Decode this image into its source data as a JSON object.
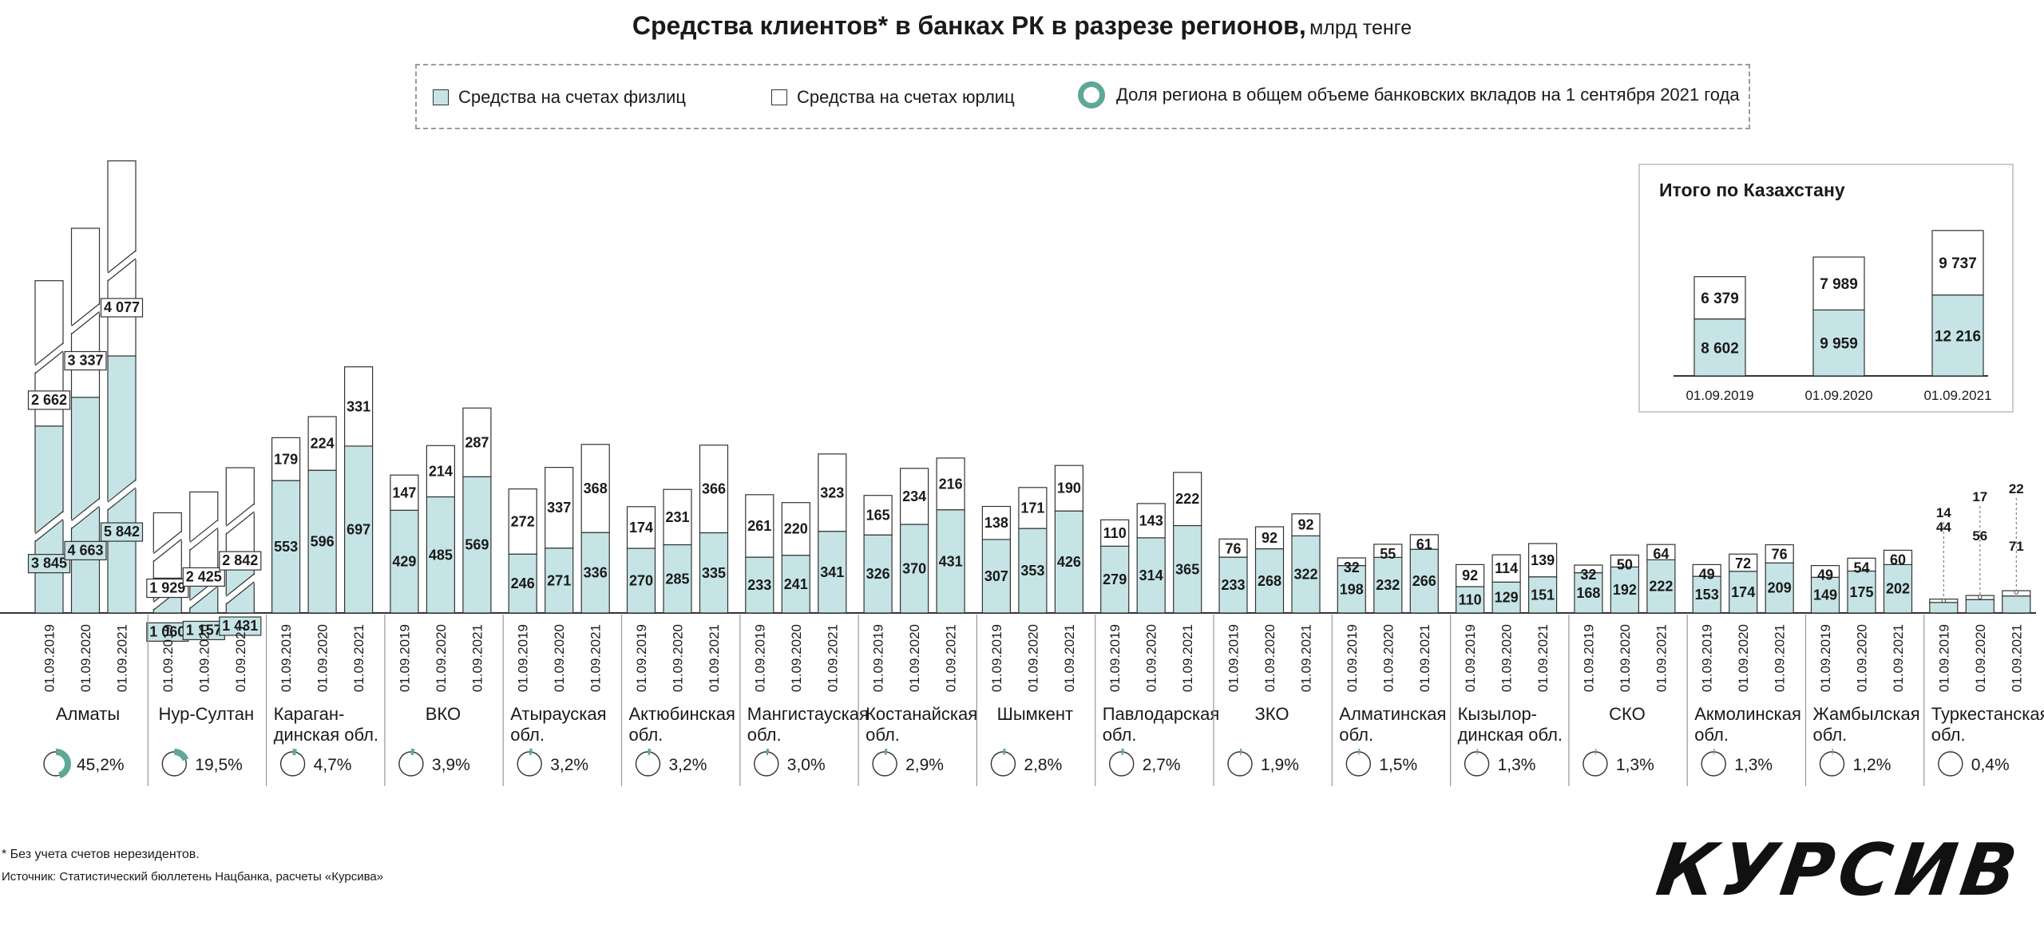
{
  "title": {
    "main": "Средства клиентов* в банках РК в разрезе регионов,",
    "unit": "млрд тенге"
  },
  "legend": {
    "individuals": "Средства на счетах физлиц",
    "legal": "Средства на счетах юрлиц",
    "share": "Доля региона в общем объеме банковских вкладов на 1 сентября 2021 года"
  },
  "colors": {
    "individuals": "#c6e4e6",
    "legal": "#ffffff",
    "outline": "#333333",
    "ring": "#5fa897"
  },
  "footnote": "* Без учета счетов нерезидентов.",
  "source": "Источник: Статистический бюллетень Нацбанка, расчеты «Курсива»",
  "logo": "КУРСИВ",
  "chart_data": [
    {
      "type": "bar",
      "stacked": true,
      "ylabel": "",
      "dates": [
        "01.09.2019",
        "01.09.2020",
        "01.09.2021"
      ],
      "series": [
        {
          "name": "Средства на счетах физлиц"
        },
        {
          "name": "Средства на счетах юрлиц"
        }
      ],
      "regions": [
        {
          "name": "Алматы",
          "share": "45,2%",
          "share_value": 45.2,
          "individuals": [
            3845,
            4663,
            5842
          ],
          "legal": [
            2662,
            3337,
            4077
          ],
          "individuals_label": [
            "3 845",
            "4 663",
            "5 842"
          ],
          "legal_label": [
            "2 662",
            "3 337",
            "4 077"
          ]
        },
        {
          "name": "Нур-Султан",
          "share": "19,5%",
          "share_value": 19.5,
          "individuals": [
            1060,
            1157,
            1431
          ],
          "legal": [
            1929,
            2425,
            2842
          ],
          "individuals_label": [
            "1 060",
            "1 157",
            "1 431"
          ],
          "legal_label": [
            "1 929",
            "2 425",
            "2 842"
          ]
        },
        {
          "name": "Караган-\nдинская обл.",
          "share": "4,7%",
          "share_value": 4.7,
          "individuals": [
            553,
            596,
            697
          ],
          "legal": [
            179,
            224,
            331
          ]
        },
        {
          "name": "ВКО",
          "share": "3,9%",
          "share_value": 3.9,
          "individuals": [
            429,
            485,
            569
          ],
          "legal": [
            147,
            214,
            287
          ]
        },
        {
          "name": "Атырауская\nобл.",
          "share": "3,2%",
          "share_value": 3.2,
          "individuals": [
            246,
            271,
            336
          ],
          "legal": [
            272,
            337,
            368
          ]
        },
        {
          "name": "Актюбинская\nобл.",
          "share": "3,2%",
          "share_value": 3.2,
          "individuals": [
            270,
            285,
            335
          ],
          "legal": [
            174,
            231,
            366
          ]
        },
        {
          "name": "Мангистауская\nобл.",
          "share": "3,0%",
          "share_value": 3.0,
          "individuals": [
            233,
            241,
            341
          ],
          "legal": [
            261,
            220,
            323
          ]
        },
        {
          "name": "Костанайская\nобл.",
          "share": "2,9%",
          "share_value": 2.9,
          "individuals": [
            326,
            370,
            431
          ],
          "legal": [
            165,
            234,
            216
          ]
        },
        {
          "name": "Шымкент",
          "share": "2,8%",
          "share_value": 2.8,
          "individuals": [
            307,
            353,
            426
          ],
          "legal": [
            138,
            171,
            190
          ]
        },
        {
          "name": "Павлодарская\nобл.",
          "share": "2,7%",
          "share_value": 2.7,
          "individuals": [
            279,
            314,
            365
          ],
          "legal": [
            110,
            143,
            222
          ]
        },
        {
          "name": "ЗКО",
          "share": "1,9%",
          "share_value": 1.9,
          "individuals": [
            233,
            268,
            322
          ],
          "legal": [
            76,
            92,
            92
          ]
        },
        {
          "name": "Алматинская\nобл.",
          "share": "1,5%",
          "share_value": 1.5,
          "individuals": [
            198,
            232,
            266
          ],
          "legal": [
            32,
            55,
            61
          ]
        },
        {
          "name": "Кызылор-\nдинская обл.",
          "share": "1,3%",
          "share_value": 1.3,
          "individuals": [
            110,
            129,
            151
          ],
          "legal": [
            92,
            114,
            139
          ]
        },
        {
          "name": "СКО",
          "share": "1,3%",
          "share_value": 1.3,
          "individuals": [
            168,
            192,
            222
          ],
          "legal": [
            32,
            50,
            64
          ]
        },
        {
          "name": "Акмолинская\nобл.",
          "share": "1,3%",
          "share_value": 1.3,
          "individuals": [
            153,
            174,
            209
          ],
          "legal": [
            49,
            72,
            76
          ]
        },
        {
          "name": "Жамбылская\nобл.",
          "share": "1,2%",
          "share_value": 1.2,
          "individuals": [
            149,
            175,
            202
          ],
          "legal": [
            49,
            54,
            60
          ]
        },
        {
          "name": "Туркестанская\nобл.",
          "share": "0,4%",
          "share_value": 0.4,
          "individuals": [
            44,
            56,
            71
          ],
          "legal": [
            14,
            17,
            22
          ]
        }
      ]
    },
    {
      "type": "bar",
      "stacked": true,
      "title": "Итого по Казахстану",
      "categories": [
        "01.09.2019",
        "01.09.2020",
        "01.09.2021"
      ],
      "series": [
        {
          "name": "Средства на счетах физлиц",
          "values": [
            8602,
            9959,
            12216
          ],
          "labels": [
            "8 602",
            "9 959",
            "12 216"
          ]
        },
        {
          "name": "Средства на счетах юрлиц",
          "values": [
            6379,
            7989,
            9737
          ],
          "labels": [
            "6 379",
            "7 989",
            "9 737"
          ]
        }
      ]
    }
  ]
}
